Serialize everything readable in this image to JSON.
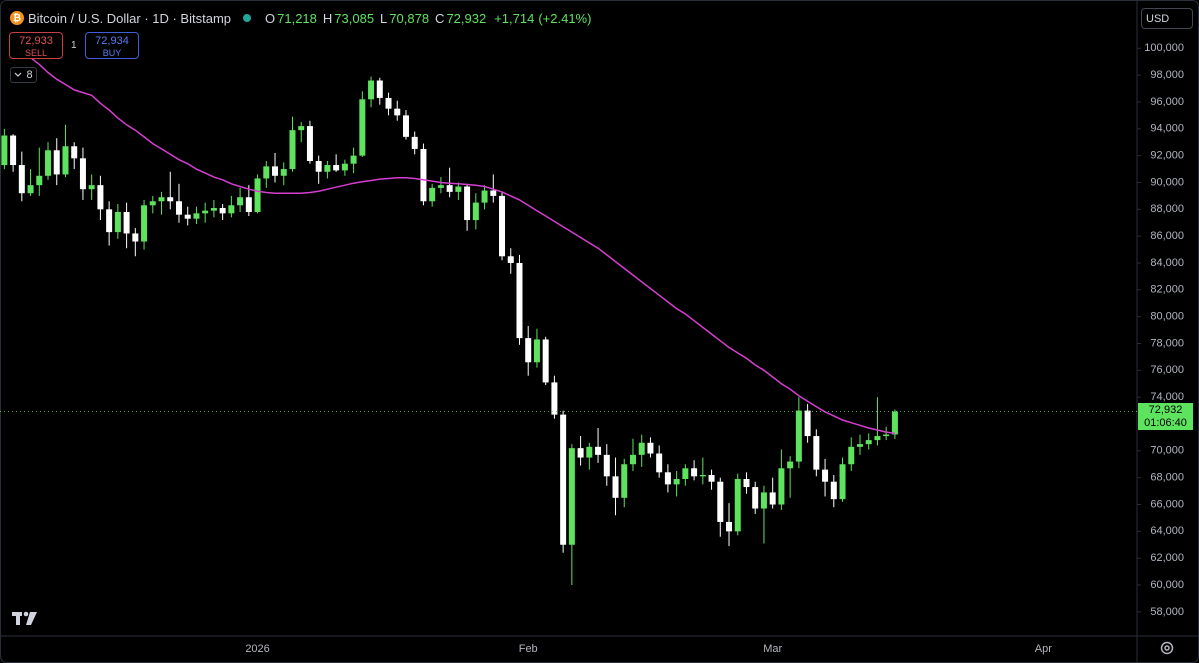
{
  "header": {
    "symbol": "Bitcoin / U.S. Dollar · 1D · Bitstamp",
    "ohlc": [
      {
        "key": "O",
        "text": "71,218"
      },
      {
        "key": "H",
        "text": "73,085"
      },
      {
        "key": "L",
        "text": "70,878"
      },
      {
        "key": "C",
        "text": "72,932"
      }
    ],
    "change": "+1,714",
    "change_percent": "(+2.41%)"
  },
  "trade": {
    "sell_price": "72,933",
    "sell_label": "SELL",
    "quantity": "1",
    "buy_price": "72,934",
    "buy_label": "BUY"
  },
  "indicators_count": "8",
  "currency": "USD",
  "price_tag": {
    "price": "72,932",
    "countdown": "01:06:40"
  },
  "chart_data": {
    "type": "candlestick",
    "categories": [
      null,
      null,
      null,
      null,
      null,
      null,
      null,
      null,
      null,
      null,
      null,
      null,
      null,
      null,
      null,
      null,
      null,
      null,
      null,
      null,
      null,
      null,
      null,
      null,
      null,
      null,
      null,
      null,
      null,
      "2026",
      null,
      null,
      null,
      null,
      null,
      null,
      null,
      null,
      null,
      null,
      null,
      null,
      null,
      null,
      null,
      null,
      null,
      null,
      null,
      null,
      null,
      null,
      null,
      null,
      null,
      null,
      null,
      null,
      null,
      null,
      "Feb",
      null,
      null,
      null,
      null,
      null,
      null,
      null,
      null,
      null,
      null,
      null,
      null,
      null,
      null,
      null,
      null,
      null,
      null,
      null,
      null,
      null,
      null,
      null,
      null,
      null,
      null,
      null,
      "Mar",
      null,
      null,
      null,
      null,
      null,
      null,
      null,
      null,
      null,
      null,
      null,
      null,
      null,
      null,
      null,
      null,
      null,
      null,
      null,
      null,
      null,
      null,
      null,
      null,
      null,
      null,
      null,
      null,
      null,
      null,
      "Apr",
      null,
      null,
      null,
      null,
      null,
      null,
      null,
      null,
      null,
      null
    ],
    "open": [
      91300,
      93500,
      91300,
      89200,
      89800,
      90500,
      92400,
      90600,
      92700,
      91800,
      89500,
      89800,
      88000,
      86300,
      87800,
      86200,
      85600,
      88300,
      88600,
      88900,
      88600,
      87600,
      87300,
      87700,
      87900,
      88100,
      87700,
      88300,
      88900,
      87800,
      90300,
      91200,
      90500,
      91000,
      93900,
      94200,
      91600,
      90800,
      91300,
      90900,
      91400,
      92000,
      96200,
      97600,
      96300,
      95500,
      95000,
      93400,
      92500,
      88600,
      89600,
      89800,
      89300,
      89700,
      87200,
      88500,
      89400,
      89000,
      84500,
      84000,
      78400,
      76600,
      78300,
      75100,
      72700,
      63000,
      70200,
      69500,
      70300,
      69700,
      68100,
      66500,
      69000,
      69700,
      70600,
      69800,
      68400,
      67500,
      67900,
      68700,
      68100,
      68200,
      67700,
      64700,
      64000,
      67900,
      67300,
      65700,
      66900,
      66000,
      68700,
      69200,
      73000,
      71100,
      68600,
      67700,
      66400,
      69000,
      70300,
      70500,
      70800,
      71100,
      71218,
      null,
      null,
      null,
      null,
      null,
      null,
      null,
      null,
      null,
      null,
      null,
      null,
      null,
      null,
      null,
      null,
      null,
      null,
      null,
      null,
      null,
      null,
      null,
      null,
      null,
      null,
      null
    ],
    "high": [
      94000,
      93600,
      92300,
      91000,
      92600,
      93000,
      93300,
      94300,
      93000,
      92600,
      90600,
      90500,
      88600,
      88400,
      88500,
      86600,
      88700,
      89000,
      89300,
      90800,
      89900,
      88200,
      88200,
      88500,
      88700,
      88400,
      89000,
      89600,
      89800,
      90600,
      91600,
      92200,
      91500,
      94900,
      94500,
      94600,
      92000,
      91600,
      92100,
      91700,
      92600,
      96800,
      97900,
      97800,
      96700,
      96100,
      95400,
      93800,
      92900,
      89900,
      90400,
      91100,
      90000,
      89900,
      89200,
      89800,
      90600,
      89300,
      85100,
      84600,
      79300,
      79100,
      78500,
      75600,
      73000,
      70500,
      71100,
      70600,
      71700,
      70500,
      69500,
      69400,
      70900,
      71200,
      71000,
      70400,
      69000,
      68500,
      69000,
      69300,
      69500,
      68600,
      68000,
      66100,
      68300,
      68400,
      67700,
      67400,
      68000,
      70100,
      69600,
      74000,
      73500,
      71600,
      69400,
      68200,
      69500,
      71000,
      71200,
      71300,
      74000,
      71800,
      73085,
      null,
      null,
      null,
      null,
      null,
      null,
      null,
      null,
      null,
      null,
      null,
      null,
      null,
      null,
      null,
      null,
      null,
      null,
      null,
      null,
      null,
      null,
      null,
      null,
      null,
      null,
      null
    ],
    "low": [
      91000,
      90800,
      88600,
      89000,
      89000,
      90200,
      89800,
      90400,
      91000,
      88700,
      88700,
      87200,
      85300,
      85800,
      85100,
      84500,
      85000,
      87700,
      87600,
      88000,
      87000,
      86800,
      86900,
      87000,
      87400,
      87200,
      87400,
      87800,
      87500,
      87700,
      89600,
      90000,
      89800,
      90800,
      93000,
      91400,
      89900,
      90300,
      90800,
      90500,
      90700,
      91900,
      95600,
      95800,
      95000,
      94600,
      93200,
      92100,
      88300,
      88200,
      89200,
      88900,
      88700,
      86400,
      86500,
      88000,
      88500,
      84200,
      83200,
      77900,
      75600,
      76200,
      74900,
      72400,
      62400,
      60000,
      68900,
      68600,
      69100,
      67400,
      65200,
      65800,
      68500,
      68800,
      69500,
      68000,
      66900,
      66600,
      67400,
      67800,
      67500,
      67100,
      63600,
      62900,
      63700,
      66800,
      65300,
      63100,
      65700,
      65600,
      66500,
      68700,
      70600,
      68100,
      66600,
      65800,
      66200,
      68500,
      69700,
      70100,
      70400,
      70800,
      70878,
      null,
      null,
      null,
      null,
      null,
      null,
      null,
      null,
      null,
      null,
      null,
      null,
      null,
      null,
      null,
      null,
      null,
      null,
      null,
      null,
      null,
      null,
      null,
      null,
      null,
      null,
      null
    ],
    "close": [
      93500,
      91300,
      89200,
      89800,
      90500,
      92400,
      90600,
      92700,
      91800,
      89500,
      89800,
      88000,
      86300,
      87800,
      86200,
      85600,
      88300,
      88600,
      88900,
      88600,
      87600,
      87300,
      87700,
      87900,
      88100,
      87700,
      88300,
      88900,
      87800,
      90300,
      91200,
      90500,
      91000,
      93900,
      94200,
      91600,
      90800,
      91300,
      90900,
      91400,
      92000,
      96200,
      97600,
      96300,
      95500,
      95000,
      93400,
      92500,
      88600,
      89600,
      89800,
      89300,
      89700,
      87200,
      88500,
      89400,
      89000,
      84500,
      84000,
      78400,
      76600,
      78300,
      75100,
      72700,
      63000,
      70200,
      69500,
      70300,
      69700,
      68100,
      66500,
      69000,
      69700,
      70600,
      69800,
      68400,
      67500,
      67900,
      68700,
      68100,
      68200,
      67700,
      64700,
      64000,
      67900,
      67300,
      65700,
      66900,
      66000,
      68700,
      69200,
      73000,
      71100,
      68600,
      67700,
      66400,
      69000,
      70300,
      70500,
      70800,
      71100,
      71218,
      72932,
      null,
      null,
      null,
      null,
      null,
      null,
      null,
      null,
      null,
      null,
      null,
      null,
      null,
      null,
      null,
      null,
      null,
      null,
      null,
      null,
      null,
      null,
      null,
      null,
      null,
      null,
      null
    ],
    "up_color": "#5ee35e",
    "down_color": "#ffffff",
    "moving_average": {
      "color": "#d53fd0",
      "values": [
        null,
        null,
        null,
        99300,
        98800,
        98200,
        97700,
        97300,
        96900,
        96700,
        96500,
        95900,
        95400,
        94800,
        94300,
        93900,
        93400,
        92900,
        92500,
        92100,
        91700,
        91400,
        91000,
        90700,
        90400,
        90200,
        89900,
        89700,
        89500,
        89350,
        89250,
        89200,
        89200,
        89200,
        89200,
        89250,
        89350,
        89500,
        89650,
        89800,
        89950,
        90050,
        90150,
        90250,
        90300,
        90350,
        90350,
        90300,
        90200,
        90100,
        90000,
        89950,
        89900,
        89850,
        89800,
        89700,
        89500,
        89300,
        89000,
        88700,
        88300,
        87900,
        87500,
        87100,
        86700,
        86300,
        85900,
        85500,
        85100,
        84600,
        84100,
        83600,
        83100,
        82600,
        82100,
        81600,
        81100,
        80600,
        80200,
        79700,
        79200,
        78700,
        78200,
        77700,
        77300,
        76900,
        76400,
        76000,
        75500,
        75000,
        74600,
        74100,
        73700,
        73300,
        72900,
        72600,
        72300,
        72100,
        71900,
        71700,
        71550,
        71400,
        71300,
        null,
        null,
        null,
        null,
        null,
        null,
        null,
        null,
        null,
        null,
        null,
        null,
        null,
        null,
        null,
        null,
        null,
        null,
        null,
        null,
        null,
        null,
        null,
        null,
        null,
        null,
        null
      ]
    },
    "ylim": [
      56200,
      103600
    ],
    "yticks": [
      {
        "value": 58000,
        "label": "58,000"
      },
      {
        "value": 60000,
        "label": "60,000"
      },
      {
        "value": 62000,
        "label": "62,000"
      },
      {
        "value": 64000,
        "label": "64,000"
      },
      {
        "value": 66000,
        "label": "66,000"
      },
      {
        "value": 68000,
        "label": "68,000"
      },
      {
        "value": 70000,
        "label": "70,000"
      },
      {
        "value": 72000,
        "label": "72,000"
      },
      {
        "value": 74000,
        "label": "74,000"
      },
      {
        "value": 76000,
        "label": "76,000"
      },
      {
        "value": 78000,
        "label": "78,000"
      },
      {
        "value": 80000,
        "label": "80,000"
      },
      {
        "value": 82000,
        "label": "82,000"
      },
      {
        "value": 84000,
        "label": "84,000"
      },
      {
        "value": 86000,
        "label": "86,000"
      },
      {
        "value": 88000,
        "label": "88,000"
      },
      {
        "value": 90000,
        "label": "90,000"
      },
      {
        "value": 92000,
        "label": "92,000"
      },
      {
        "value": 94000,
        "label": "94,000"
      },
      {
        "value": 96000,
        "label": "96,000"
      },
      {
        "value": 98000,
        "label": "98,000"
      },
      {
        "value": 100000,
        "label": "100,000"
      }
    ],
    "grid": false
  }
}
